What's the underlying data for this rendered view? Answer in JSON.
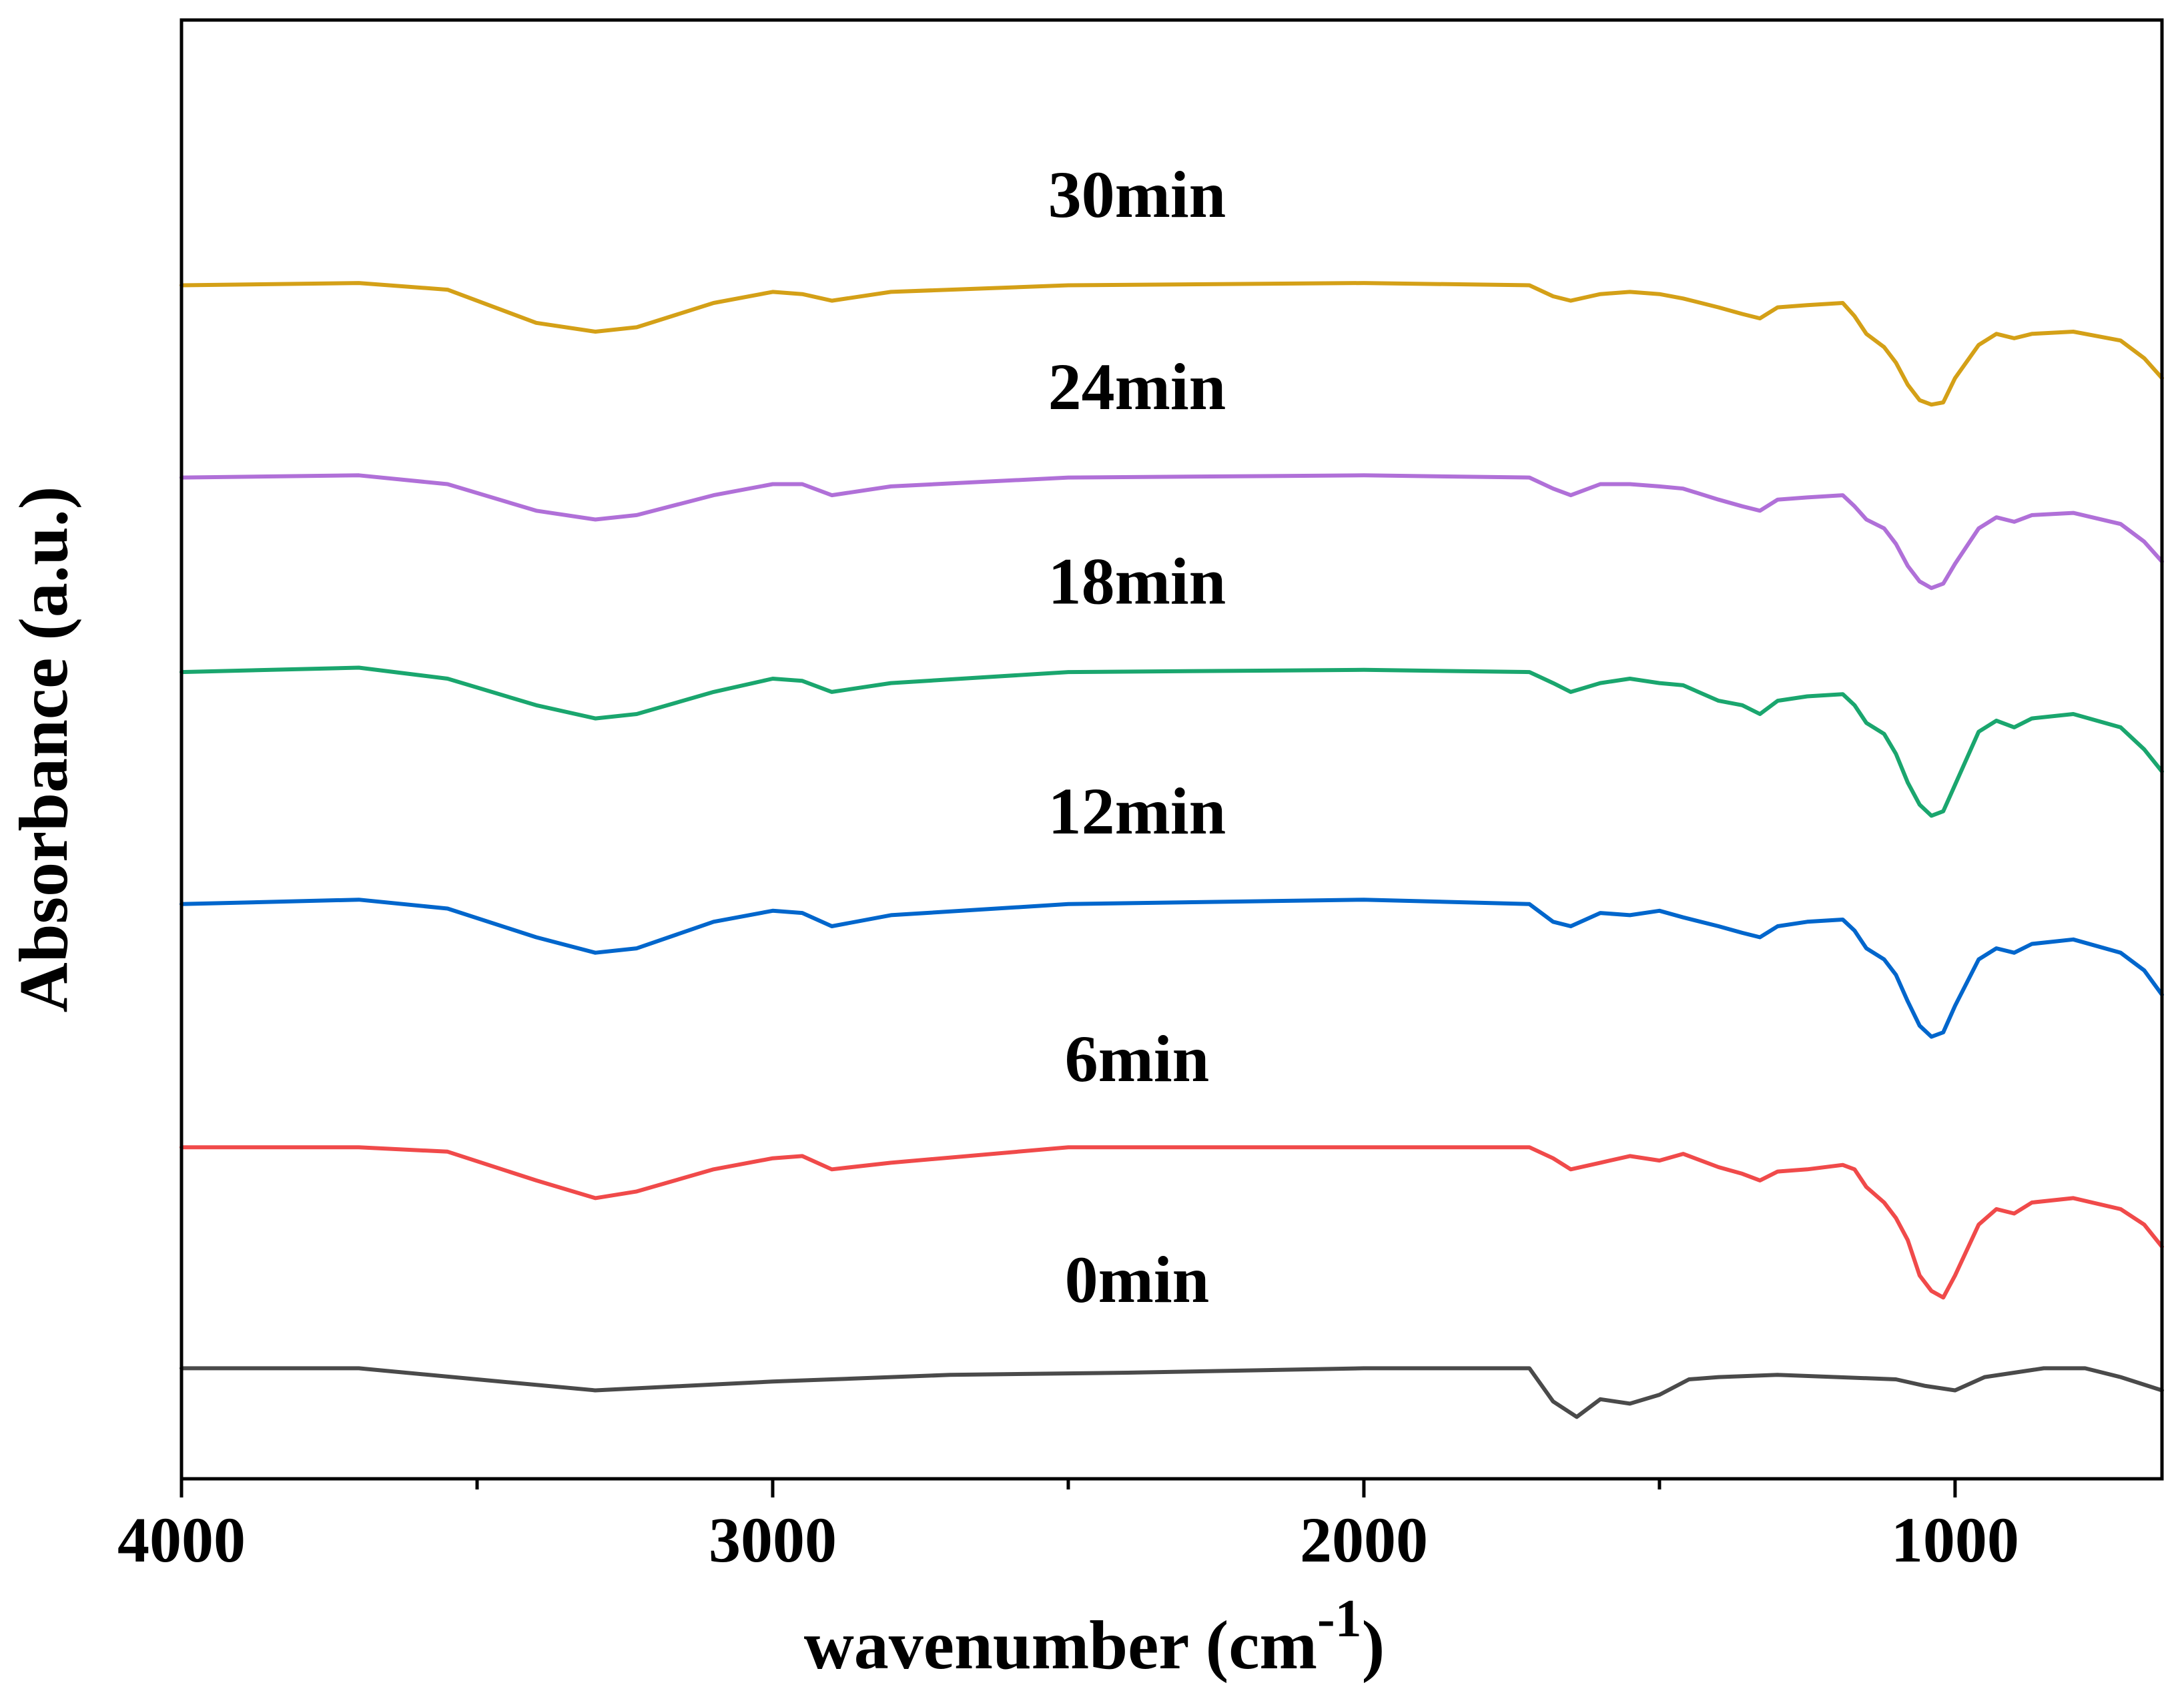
{
  "chart_data": {
    "type": "line",
    "title": "",
    "xlabel_main": "wavenumber (cm",
    "xlabel_sup": "-1",
    "xlabel_close": ")",
    "ylabel": "Absorbance (a.u.)",
    "xlim": [
      4000,
      650
    ],
    "ylim": [
      -0.4,
      6.2
    ],
    "x_major_ticks": [
      4000,
      3000,
      2000,
      1000
    ],
    "x_minor_ticks": [
      3500,
      2500,
      1500
    ],
    "x_tick_labels": [
      "4000",
      "3000",
      "2000",
      "1000"
    ],
    "yticks_visible": false,
    "series": [
      {
        "name": "0min",
        "label": "0min",
        "color": "#4a4a4a",
        "label_x": 2000,
        "label_offset": 0.3,
        "points": [
          [
            4000,
            0.1
          ],
          [
            3700,
            0.1
          ],
          [
            3500,
            0.05
          ],
          [
            3300,
            0.0
          ],
          [
            3150,
            0.02
          ],
          [
            3000,
            0.04
          ],
          [
            2900,
            0.05
          ],
          [
            2700,
            0.07
          ],
          [
            2400,
            0.08
          ],
          [
            2000,
            0.1
          ],
          [
            1720,
            0.1
          ],
          [
            1680,
            -0.05
          ],
          [
            1640,
            -0.12
          ],
          [
            1600,
            -0.04
          ],
          [
            1550,
            -0.06
          ],
          [
            1500,
            -0.02
          ],
          [
            1450,
            0.05
          ],
          [
            1400,
            0.06
          ],
          [
            1300,
            0.07
          ],
          [
            1200,
            0.06
          ],
          [
            1100,
            0.05
          ],
          [
            1050,
            0.02
          ],
          [
            1000,
            0.0
          ],
          [
            950,
            0.06
          ],
          [
            850,
            0.1
          ],
          [
            780,
            0.1
          ],
          [
            720,
            0.06
          ],
          [
            650,
            0.0
          ]
        ]
      },
      {
        "name": "6min",
        "label": "6min",
        "color": "#f04a4a",
        "label_x": 2000,
        "label_offset": 0.3,
        "points": [
          [
            4000,
            1.1
          ],
          [
            3700,
            1.1
          ],
          [
            3550,
            1.08
          ],
          [
            3400,
            0.95
          ],
          [
            3300,
            0.87
          ],
          [
            3230,
            0.9
          ],
          [
            3100,
            1.0
          ],
          [
            3000,
            1.05
          ],
          [
            2950,
            1.06
          ],
          [
            2900,
            1.0
          ],
          [
            2800,
            1.03
          ],
          [
            2500,
            1.1
          ],
          [
            2000,
            1.1
          ],
          [
            1720,
            1.1
          ],
          [
            1680,
            1.05
          ],
          [
            1650,
            1.0
          ],
          [
            1600,
            1.03
          ],
          [
            1550,
            1.06
          ],
          [
            1500,
            1.04
          ],
          [
            1460,
            1.07
          ],
          [
            1400,
            1.01
          ],
          [
            1360,
            0.98
          ],
          [
            1330,
            0.95
          ],
          [
            1300,
            0.99
          ],
          [
            1250,
            1.0
          ],
          [
            1190,
            1.02
          ],
          [
            1170,
            1.0
          ],
          [
            1150,
            0.92
          ],
          [
            1120,
            0.85
          ],
          [
            1100,
            0.78
          ],
          [
            1080,
            0.68
          ],
          [
            1060,
            0.52
          ],
          [
            1040,
            0.45
          ],
          [
            1020,
            0.42
          ],
          [
            1000,
            0.52
          ],
          [
            960,
            0.75
          ],
          [
            930,
            0.82
          ],
          [
            900,
            0.8
          ],
          [
            870,
            0.85
          ],
          [
            800,
            0.87
          ],
          [
            720,
            0.82
          ],
          [
            680,
            0.75
          ],
          [
            650,
            0.65
          ]
        ]
      },
      {
        "name": "12min",
        "label": "12min",
        "color": "#0066cc",
        "label_x": 2000,
        "label_offset": 0.3,
        "points": [
          [
            4000,
            2.2
          ],
          [
            3700,
            2.22
          ],
          [
            3550,
            2.18
          ],
          [
            3400,
            2.05
          ],
          [
            3300,
            1.98
          ],
          [
            3230,
            2.0
          ],
          [
            3100,
            2.12
          ],
          [
            3000,
            2.17
          ],
          [
            2950,
            2.16
          ],
          [
            2900,
            2.1
          ],
          [
            2800,
            2.15
          ],
          [
            2500,
            2.2
          ],
          [
            2000,
            2.22
          ],
          [
            1720,
            2.2
          ],
          [
            1680,
            2.12
          ],
          [
            1650,
            2.1
          ],
          [
            1600,
            2.16
          ],
          [
            1550,
            2.15
          ],
          [
            1500,
            2.17
          ],
          [
            1460,
            2.14
          ],
          [
            1400,
            2.1
          ],
          [
            1360,
            2.07
          ],
          [
            1330,
            2.05
          ],
          [
            1300,
            2.1
          ],
          [
            1250,
            2.12
          ],
          [
            1190,
            2.13
          ],
          [
            1170,
            2.08
          ],
          [
            1150,
            2.0
          ],
          [
            1120,
            1.95
          ],
          [
            1100,
            1.88
          ],
          [
            1080,
            1.76
          ],
          [
            1060,
            1.65
          ],
          [
            1040,
            1.6
          ],
          [
            1020,
            1.62
          ],
          [
            1000,
            1.74
          ],
          [
            960,
            1.95
          ],
          [
            930,
            2.0
          ],
          [
            900,
            1.98
          ],
          [
            870,
            2.02
          ],
          [
            800,
            2.04
          ],
          [
            720,
            1.98
          ],
          [
            680,
            1.9
          ],
          [
            650,
            1.79
          ]
        ]
      },
      {
        "name": "18min",
        "label": "18min",
        "color": "#1aa66e",
        "label_x": 2000,
        "label_offset": 0.3,
        "points": [
          [
            4000,
            3.25
          ],
          [
            3700,
            3.27
          ],
          [
            3550,
            3.22
          ],
          [
            3400,
            3.1
          ],
          [
            3300,
            3.04
          ],
          [
            3230,
            3.06
          ],
          [
            3100,
            3.16
          ],
          [
            3000,
            3.22
          ],
          [
            2950,
            3.21
          ],
          [
            2900,
            3.16
          ],
          [
            2800,
            3.2
          ],
          [
            2500,
            3.25
          ],
          [
            2000,
            3.26
          ],
          [
            1720,
            3.25
          ],
          [
            1680,
            3.2
          ],
          [
            1650,
            3.16
          ],
          [
            1600,
            3.2
          ],
          [
            1550,
            3.22
          ],
          [
            1500,
            3.2
          ],
          [
            1460,
            3.19
          ],
          [
            1400,
            3.12
          ],
          [
            1360,
            3.1
          ],
          [
            1330,
            3.06
          ],
          [
            1300,
            3.12
          ],
          [
            1250,
            3.14
          ],
          [
            1190,
            3.15
          ],
          [
            1170,
            3.1
          ],
          [
            1150,
            3.02
          ],
          [
            1120,
            2.97
          ],
          [
            1100,
            2.88
          ],
          [
            1080,
            2.75
          ],
          [
            1060,
            2.65
          ],
          [
            1040,
            2.6
          ],
          [
            1020,
            2.62
          ],
          [
            1000,
            2.74
          ],
          [
            960,
            2.98
          ],
          [
            930,
            3.03
          ],
          [
            900,
            3.0
          ],
          [
            870,
            3.04
          ],
          [
            800,
            3.06
          ],
          [
            720,
            3.0
          ],
          [
            680,
            2.9
          ],
          [
            650,
            2.8
          ]
        ]
      },
      {
        "name": "24min",
        "label": "24min",
        "color": "#b070d8",
        "label_x": 2000,
        "label_offset": 0.3,
        "points": [
          [
            4000,
            4.13
          ],
          [
            3700,
            4.14
          ],
          [
            3550,
            4.1
          ],
          [
            3400,
            3.98
          ],
          [
            3300,
            3.94
          ],
          [
            3230,
            3.96
          ],
          [
            3100,
            4.05
          ],
          [
            3000,
            4.1
          ],
          [
            2950,
            4.1
          ],
          [
            2900,
            4.05
          ],
          [
            2800,
            4.09
          ],
          [
            2500,
            4.13
          ],
          [
            2000,
            4.14
          ],
          [
            1720,
            4.13
          ],
          [
            1680,
            4.08
          ],
          [
            1650,
            4.05
          ],
          [
            1600,
            4.1
          ],
          [
            1550,
            4.1
          ],
          [
            1500,
            4.09
          ],
          [
            1460,
            4.08
          ],
          [
            1400,
            4.03
          ],
          [
            1360,
            4.0
          ],
          [
            1330,
            3.98
          ],
          [
            1300,
            4.03
          ],
          [
            1250,
            4.04
          ],
          [
            1190,
            4.05
          ],
          [
            1170,
            4.0
          ],
          [
            1150,
            3.94
          ],
          [
            1120,
            3.9
          ],
          [
            1100,
            3.83
          ],
          [
            1080,
            3.73
          ],
          [
            1060,
            3.66
          ],
          [
            1040,
            3.63
          ],
          [
            1020,
            3.65
          ],
          [
            1000,
            3.74
          ],
          [
            960,
            3.9
          ],
          [
            930,
            3.95
          ],
          [
            900,
            3.93
          ],
          [
            870,
            3.96
          ],
          [
            800,
            3.97
          ],
          [
            720,
            3.92
          ],
          [
            680,
            3.84
          ],
          [
            650,
            3.75
          ]
        ]
      },
      {
        "name": "30min",
        "label": "30min",
        "color": "#d4a017",
        "label_x": 2000,
        "label_offset": 0.3,
        "points": [
          [
            4000,
            5.0
          ],
          [
            3700,
            5.01
          ],
          [
            3550,
            4.98
          ],
          [
            3400,
            4.83
          ],
          [
            3300,
            4.79
          ],
          [
            3230,
            4.81
          ],
          [
            3100,
            4.92
          ],
          [
            3000,
            4.97
          ],
          [
            2950,
            4.96
          ],
          [
            2900,
            4.93
          ],
          [
            2800,
            4.97
          ],
          [
            2500,
            5.0
          ],
          [
            2000,
            5.01
          ],
          [
            1720,
            5.0
          ],
          [
            1680,
            4.95
          ],
          [
            1650,
            4.93
          ],
          [
            1600,
            4.96
          ],
          [
            1550,
            4.97
          ],
          [
            1500,
            4.96
          ],
          [
            1460,
            4.94
          ],
          [
            1400,
            4.9
          ],
          [
            1360,
            4.87
          ],
          [
            1330,
            4.85
          ],
          [
            1300,
            4.9
          ],
          [
            1250,
            4.91
          ],
          [
            1190,
            4.92
          ],
          [
            1170,
            4.86
          ],
          [
            1150,
            4.78
          ],
          [
            1120,
            4.72
          ],
          [
            1100,
            4.65
          ],
          [
            1080,
            4.55
          ],
          [
            1060,
            4.48
          ],
          [
            1040,
            4.46
          ],
          [
            1020,
            4.47
          ],
          [
            1000,
            4.58
          ],
          [
            960,
            4.73
          ],
          [
            930,
            4.78
          ],
          [
            900,
            4.76
          ],
          [
            870,
            4.78
          ],
          [
            800,
            4.79
          ],
          [
            720,
            4.75
          ],
          [
            680,
            4.67
          ],
          [
            650,
            4.58
          ]
        ]
      }
    ]
  }
}
